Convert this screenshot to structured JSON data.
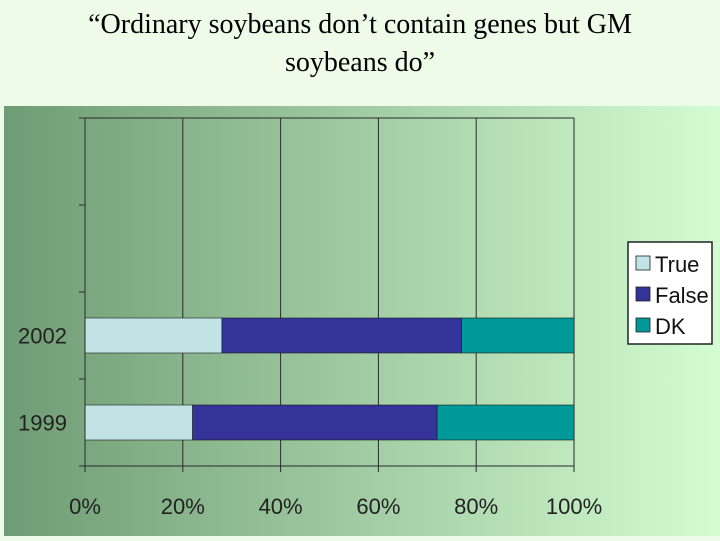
{
  "slide": {
    "title_line1": "“Ordinary soybeans don’t contain genes but GM",
    "title_line2": "soybeans do”"
  },
  "colors": {
    "background_left": "#6f9c74",
    "background_right": "#d4fcd2",
    "slide_background": "#eefbe8",
    "true": "#c1e3e6",
    "false": "#333399",
    "dk": "#009999",
    "gridline": "#2b2b2b"
  },
  "chart_data": {
    "type": "bar",
    "orientation": "horizontal",
    "stacked": "percent",
    "title": "",
    "xlabel": "",
    "ylabel": "",
    "categories": [
      "2002",
      "1999"
    ],
    "series": [
      {
        "name": "True",
        "values": [
          28,
          22
        ]
      },
      {
        "name": "False",
        "values": [
          49,
          50
        ]
      },
      {
        "name": "DK",
        "values": [
          23,
          28
        ]
      }
    ],
    "xlim": [
      0,
      100
    ],
    "x_ticks": [
      "0%",
      "20%",
      "40%",
      "60%",
      "80%",
      "100%"
    ],
    "grid": true,
    "legend": "right"
  }
}
